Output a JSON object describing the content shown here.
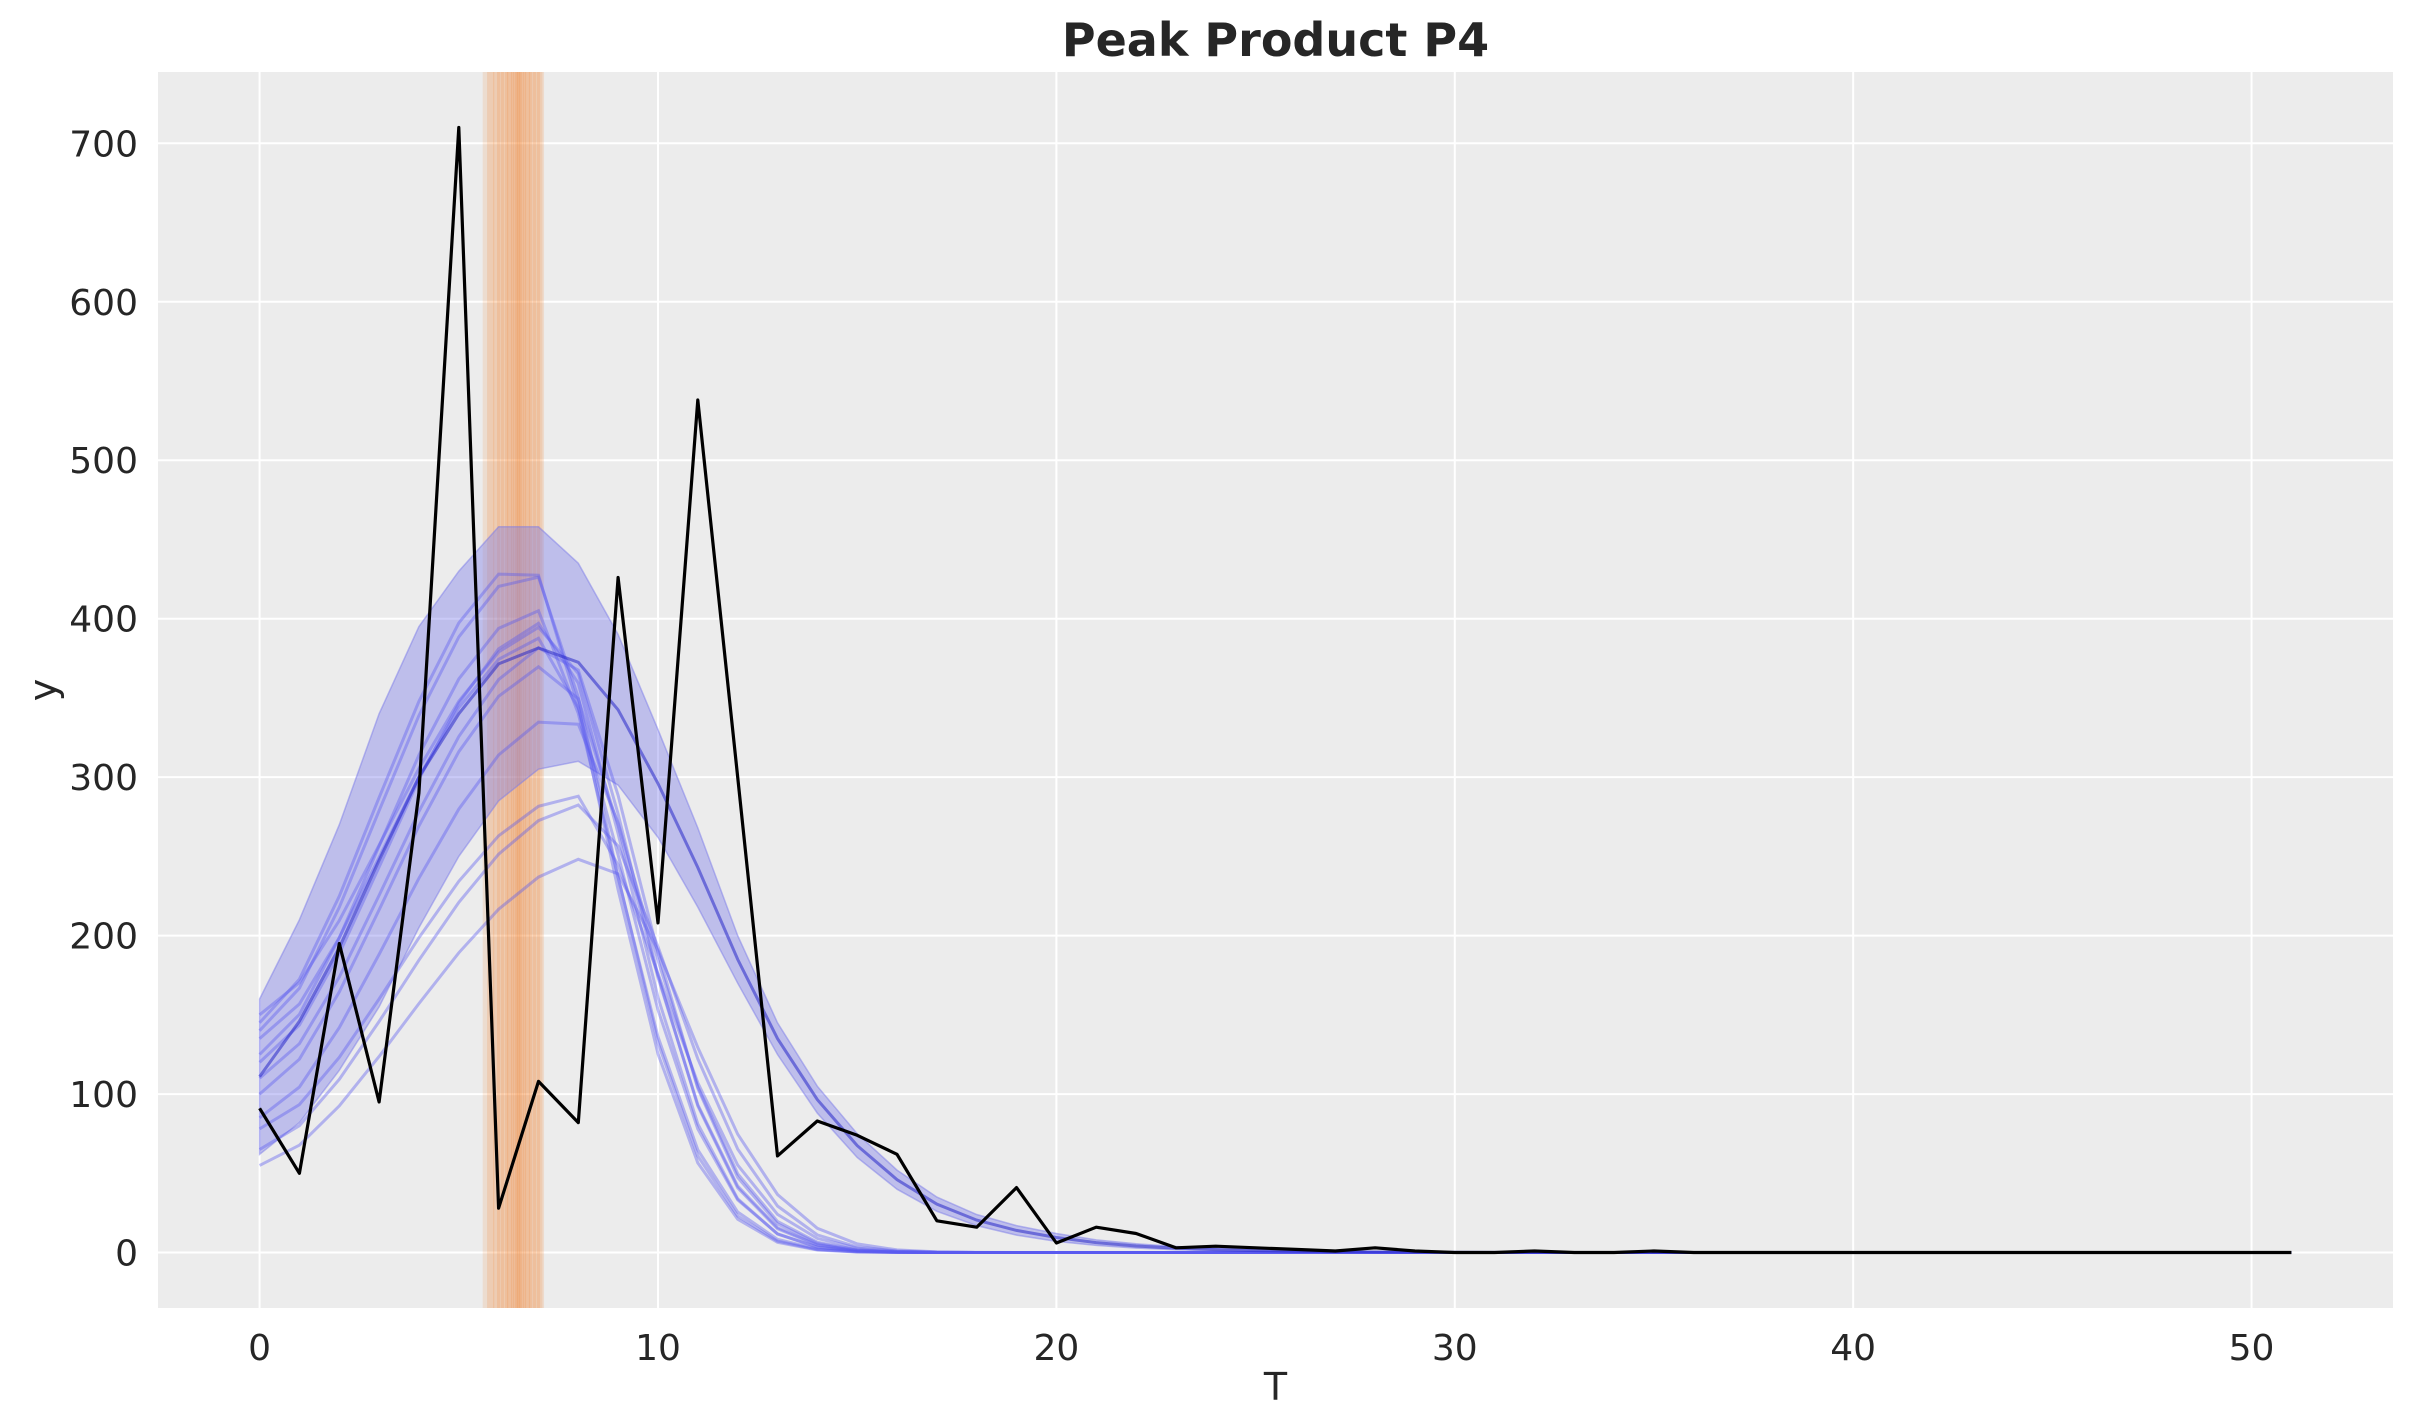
{
  "chart_data": {
    "type": "line",
    "title": "Peak Product P4",
    "xlabel": "T",
    "ylabel": "y",
    "xlim": [
      -2.55,
      53.55
    ],
    "ylim": [
      -35,
      745
    ],
    "xticks": [
      0,
      10,
      20,
      30,
      40,
      50
    ],
    "yticks": [
      0,
      100,
      200,
      300,
      400,
      500,
      600,
      700
    ],
    "grid": true,
    "background": "#ececec",
    "colors": {
      "observed": "#000000",
      "samples": "#5b5bf0",
      "band": "#7b7bea",
      "mean": "#2626c8",
      "peak": "#f07d26"
    },
    "observed": {
      "x": [
        0,
        1,
        2,
        3,
        4,
        5,
        6,
        7,
        8,
        9,
        10,
        11,
        12,
        13,
        14,
        15,
        16,
        17,
        18,
        19,
        20,
        21,
        22,
        23,
        24,
        25,
        26,
        27,
        28,
        29,
        30,
        31,
        32,
        33,
        34,
        35,
        36,
        37,
        38,
        39,
        40,
        41,
        42,
        43,
        44,
        45,
        46,
        47,
        48,
        49,
        50,
        51
      ],
      "y": [
        91,
        50,
        195,
        95,
        290,
        710,
        28,
        108,
        82,
        426,
        208,
        538,
        300,
        61,
        83,
        74,
        62,
        20,
        16,
        41,
        6,
        16,
        12,
        3,
        4,
        3,
        2,
        1,
        3,
        1,
        0,
        0,
        1,
        0,
        0,
        1,
        0,
        0,
        0,
        0,
        0,
        0,
        0,
        0,
        0,
        0,
        0,
        0,
        0,
        0,
        0,
        0
      ]
    },
    "band": {
      "x": [
        0,
        1,
        2,
        3,
        4,
        5,
        6,
        7,
        8,
        9,
        10,
        11,
        12,
        13,
        14,
        15,
        16,
        17,
        18,
        19,
        20,
        21,
        22,
        23,
        24,
        25,
        26,
        27,
        28,
        29,
        30,
        31,
        32,
        33,
        34,
        35,
        36,
        37,
        38,
        39,
        40,
        41,
        42,
        43,
        44,
        45,
        46,
        47,
        48,
        49,
        50,
        51
      ],
      "lower": [
        62,
        82,
        115,
        155,
        205,
        250,
        285,
        305,
        310,
        295,
        262,
        218,
        170,
        125,
        88,
        60,
        40,
        26,
        17,
        11,
        7,
        4.5,
        2.8,
        1.8,
        1.1,
        0.7,
        0.4,
        0.3,
        0.2,
        0.1,
        0.1,
        0,
        0,
        0,
        0,
        0,
        0,
        0,
        0,
        0,
        0,
        0,
        0,
        0,
        0,
        0,
        0,
        0,
        0,
        0,
        0,
        0
      ],
      "upper": [
        160,
        210,
        270,
        340,
        395,
        430,
        458,
        458,
        435,
        390,
        330,
        268,
        200,
        145,
        105,
        75,
        52,
        35,
        24,
        17,
        12,
        8,
        5.5,
        3.8,
        2.6,
        1.8,
        1.2,
        0.8,
        0.6,
        0.4,
        0.3,
        0.2,
        0.1,
        0.1,
        0,
        0,
        0,
        0,
        0,
        0,
        0,
        0,
        0,
        0,
        0,
        0,
        0,
        0,
        0,
        0,
        0,
        0
      ]
    },
    "sample_curves": [
      {
        "base": 55,
        "peak": 250,
        "peak_t": 8.6,
        "decay": 0.18
      },
      {
        "base": 65,
        "peak": 283,
        "peak_t": 8.3,
        "decay": 0.19
      },
      {
        "base": 78,
        "peak": 288,
        "peak_t": 8.0,
        "decay": 0.185
      },
      {
        "base": 85,
        "peak": 340,
        "peak_t": 7.8,
        "decay": 0.2
      },
      {
        "base": 100,
        "peak": 372,
        "peak_t": 7.5,
        "decay": 0.2
      },
      {
        "base": 110,
        "peak": 385,
        "peak_t": 7.6,
        "decay": 0.2
      },
      {
        "base": 120,
        "peak": 398,
        "peak_t": 7.3,
        "decay": 0.21
      },
      {
        "base": 125,
        "peak": 405,
        "peak_t": 7.0,
        "decay": 0.21
      },
      {
        "base": 135,
        "peak": 388,
        "peak_t": 7.2,
        "decay": 0.2
      },
      {
        "base": 140,
        "peak": 430,
        "peak_t": 6.9,
        "decay": 0.215
      },
      {
        "base": 145,
        "peak": 436,
        "peak_t": 6.8,
        "decay": 0.215
      },
      {
        "base": 150,
        "peak": 396,
        "peak_t": 7.4,
        "decay": 0.2
      }
    ],
    "peak_lines": [
      5.8,
      5.95,
      6.05,
      6.15,
      6.25,
      6.3,
      6.4,
      6.45,
      6.5,
      6.55,
      6.6,
      6.7,
      6.75,
      6.85,
      6.95,
      7.05
    ],
    "peak_band": [
      5.6,
      7.1
    ]
  }
}
